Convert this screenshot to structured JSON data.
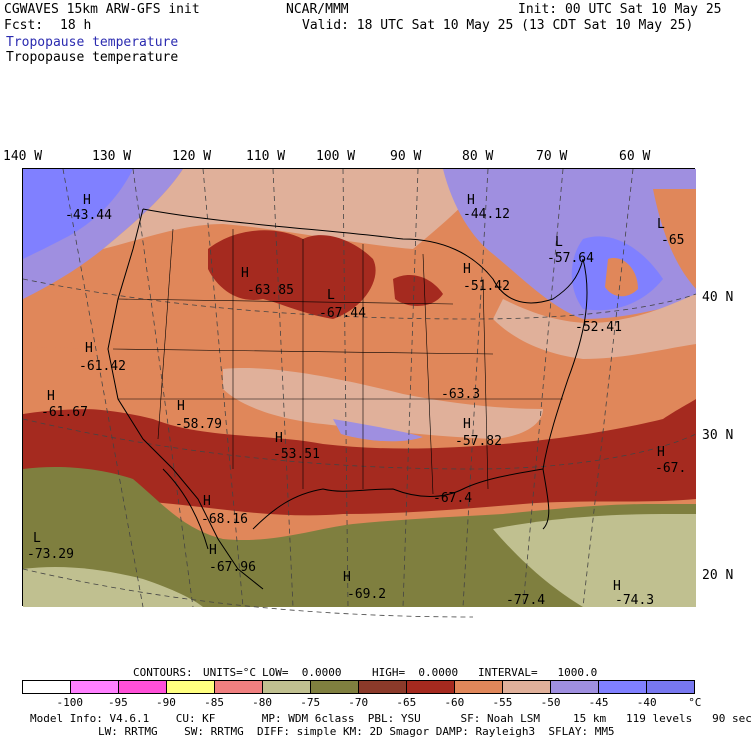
{
  "header": {
    "model": "CGWAVES 15km ARW-GFS init",
    "fcst_label": "Fcst:",
    "fcst_value": "18 h",
    "center": "NCAR/MMM",
    "init": "Init: 00 UTC Sat 10 May 25",
    "valid": "Valid: 18 UTC Sat 10 May 25 (13 CDT Sat 10 May 25)",
    "field1": "Tropopause temperature",
    "field2": "Tropopause temperature"
  },
  "lon_labels": [
    "140 W",
    "130 W",
    "120 W",
    "110 W",
    "100 W",
    "90 W",
    "80 W",
    "70 W",
    "60 W"
  ],
  "lat_labels": [
    "40 N",
    "30 N",
    "20 N"
  ],
  "extrema": [
    {
      "letter": "H",
      "value": "-43.44"
    },
    {
      "letter": "H",
      "value": "-63.85"
    },
    {
      "letter": "L",
      "value": "-67.44"
    },
    {
      "letter": "H",
      "value": "-44.12"
    },
    {
      "letter": "L",
      "value": "-57.64"
    },
    {
      "letter": "H",
      "value": "-51.42"
    },
    {
      "letter": "L",
      "value": "-65"
    },
    {
      "letter": "",
      "value": "-52.41"
    },
    {
      "letter": "H",
      "value": "-61.42"
    },
    {
      "letter": "H",
      "value": "-61.67"
    },
    {
      "letter": "H",
      "value": "-58.79"
    },
    {
      "letter": "H",
      "value": "-53.51"
    },
    {
      "letter": "",
      "value": "-63.3"
    },
    {
      "letter": "H",
      "value": "-57.82"
    },
    {
      "letter": "H",
      "value": "-67."
    },
    {
      "letter": "",
      "value": "-67.4"
    },
    {
      "letter": "H",
      "value": "-68.16"
    },
    {
      "letter": "L",
      "value": "-73.29"
    },
    {
      "letter": "H",
      "value": "-67.96"
    },
    {
      "letter": "H",
      "value": "-69.2"
    },
    {
      "letter": "",
      "value": "-77.4"
    },
    {
      "letter": "H",
      "value": "-74.3"
    }
  ],
  "contours": {
    "label": "CONTOURS:",
    "units": "UNITS=°C",
    "low": "LOW=  0.0000",
    "high": "HIGH=  0.0000",
    "interval": "INTERVAL=   1000.0"
  },
  "colorbar": {
    "colors": [
      "#ffffff",
      "#ff80ff",
      "#ff50d8",
      "#ffff80",
      "#f08080",
      "#c0c090",
      "#7f7f3f",
      "#8b3a2a",
      "#a52a1f",
      "#e0875a",
      "#e0b09a",
      "#9f8fe0",
      "#8080ff",
      "#7878f0"
    ],
    "ticks": [
      "-100",
      "-95",
      "-90",
      "-85",
      "-80",
      "-75",
      "-70",
      "-65",
      "-60",
      "-55",
      "-50",
      "-45",
      "-40",
      "°C"
    ]
  },
  "model_info": {
    "line1": "Model Info: V4.6.1    CU: KF       MP: WDM 6class  PBL: YSU      SF: Noah LSM     15 km   119 levels   90 sec",
    "line2": "LW: RRTMG    SW: RRTMG  DIFF: simple KM: 2D Smagor DAMP: Rayleigh3  SFLAY: MM5"
  }
}
